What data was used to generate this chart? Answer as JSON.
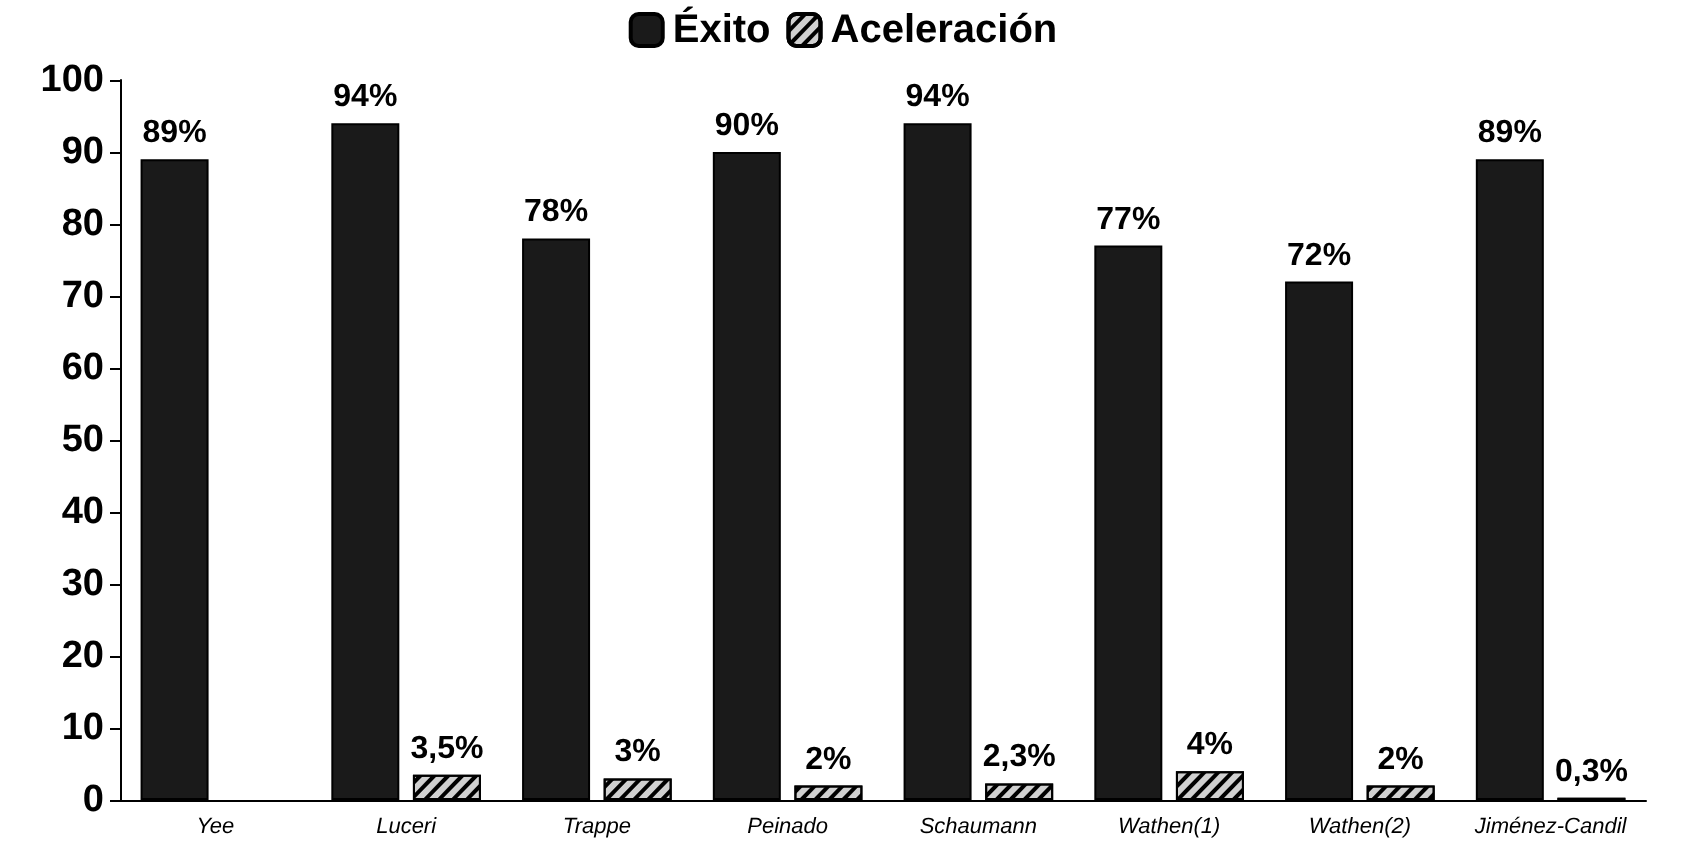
{
  "chart_data": {
    "type": "bar",
    "categories": [
      "Yee",
      "Luceri",
      "Trappe",
      "Peinado",
      "Schaumann",
      "Wathen(1)",
      "Wathen(2)",
      "Jiménez-Candil"
    ],
    "series": [
      {
        "name": "Éxito",
        "color": "#1a1a1a",
        "values": [
          89,
          94,
          78,
          90,
          94,
          77,
          72,
          89
        ],
        "value_labels": [
          "89%",
          "94%",
          "78%",
          "90%",
          "94%",
          "77%",
          "72%",
          "89%"
        ]
      },
      {
        "name": "Aceleración",
        "color": "#d0d0d0",
        "values": [
          null,
          3.5,
          3,
          2,
          2.3,
          4,
          2,
          0.3
        ],
        "value_labels": [
          null,
          "3,5%",
          "3%",
          "2%",
          "2,3%",
          "4%",
          "2%",
          "0,3%"
        ]
      }
    ],
    "ylim": [
      0,
      100
    ],
    "yticks": [
      0,
      10,
      20,
      30,
      40,
      50,
      60,
      70,
      80,
      90,
      100
    ],
    "grid": false,
    "legend": "top"
  }
}
